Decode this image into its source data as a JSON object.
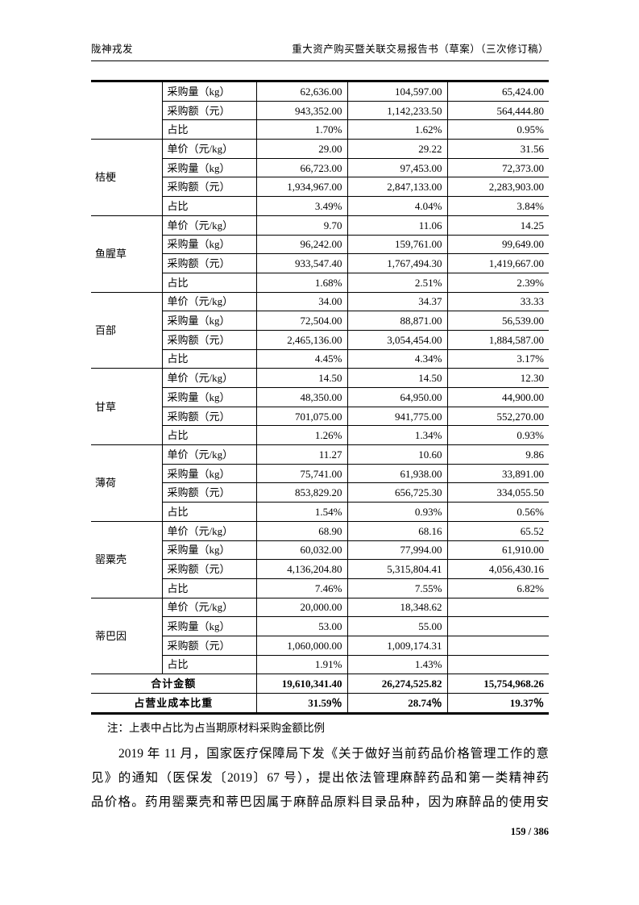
{
  "page": {
    "header_left": "陇神戎发",
    "header_right": "重大资产购买暨关联交易报告书（草案）（三次修订稿）",
    "footer_page": "159 / 386"
  },
  "table": {
    "groups": [
      {
        "name": "",
        "rows": [
          [
            "采购量（kg）",
            "62,636.00",
            "104,597.00",
            "65,424.00"
          ],
          [
            "采购额（元）",
            "943,352.00",
            "1,142,233.50",
            "564,444.80"
          ],
          [
            "占比",
            "1.70%",
            "1.62%",
            "0.95%"
          ]
        ]
      },
      {
        "name": "桔梗",
        "rows": [
          [
            "单价（元/kg）",
            "29.00",
            "29.22",
            "31.56"
          ],
          [
            "采购量（kg）",
            "66,723.00",
            "97,453.00",
            "72,373.00"
          ],
          [
            "采购额（元）",
            "1,934,967.00",
            "2,847,133.00",
            "2,283,903.00"
          ],
          [
            "占比",
            "3.49%",
            "4.04%",
            "3.84%"
          ]
        ]
      },
      {
        "name": "鱼腥草",
        "rows": [
          [
            "单价（元/kg）",
            "9.70",
            "11.06",
            "14.25"
          ],
          [
            "采购量（kg）",
            "96,242.00",
            "159,761.00",
            "99,649.00"
          ],
          [
            "采购额（元）",
            "933,547.40",
            "1,767,494.30",
            "1,419,667.00"
          ],
          [
            "占比",
            "1.68%",
            "2.51%",
            "2.39%"
          ]
        ]
      },
      {
        "name": "百部",
        "rows": [
          [
            "单价（元/kg）",
            "34.00",
            "34.37",
            "33.33"
          ],
          [
            "采购量（kg）",
            "72,504.00",
            "88,871.00",
            "56,539.00"
          ],
          [
            "采购额（元）",
            "2,465,136.00",
            "3,054,454.00",
            "1,884,587.00"
          ],
          [
            "占比",
            "4.45%",
            "4.34%",
            "3.17%"
          ]
        ]
      },
      {
        "name": "甘草",
        "rows": [
          [
            "单价（元/kg）",
            "14.50",
            "14.50",
            "12.30"
          ],
          [
            "采购量（kg）",
            "48,350.00",
            "64,950.00",
            "44,900.00"
          ],
          [
            "采购额（元）",
            "701,075.00",
            "941,775.00",
            "552,270.00"
          ],
          [
            "占比",
            "1.26%",
            "1.34%",
            "0.93%"
          ]
        ]
      },
      {
        "name": "薄荷",
        "rows": [
          [
            "单价（元/kg）",
            "11.27",
            "10.60",
            "9.86"
          ],
          [
            "采购量（kg）",
            "75,741.00",
            "61,938.00",
            "33,891.00"
          ],
          [
            "采购额（元）",
            "853,829.20",
            "656,725.30",
            "334,055.50"
          ],
          [
            "占比",
            "1.54%",
            "0.93%",
            "0.56%"
          ]
        ]
      },
      {
        "name": "罂粟壳",
        "rows": [
          [
            "单价（元/kg）",
            "68.90",
            "68.16",
            "65.52"
          ],
          [
            "采购量（kg）",
            "60,032.00",
            "77,994.00",
            "61,910.00"
          ],
          [
            "采购额（元）",
            "4,136,204.80",
            "5,315,804.41",
            "4,056,430.16"
          ],
          [
            "占比",
            "7.46%",
            "7.55%",
            "6.82%"
          ]
        ]
      },
      {
        "name": "蒂巴因",
        "rows": [
          [
            "单价（元/kg）",
            "20,000.00",
            "18,348.62",
            ""
          ],
          [
            "采购量（kg）",
            "53.00",
            "55.00",
            ""
          ],
          [
            "采购额（元）",
            "1,060,000.00",
            "1,009,174.31",
            ""
          ],
          [
            "占比",
            "1.91%",
            "1.43%",
            ""
          ]
        ]
      }
    ],
    "summary": [
      {
        "label": "合计金额",
        "values": [
          "19,610,341.40",
          "26,274,525.82",
          "15,754,968.26"
        ]
      },
      {
        "label": "占营业成本比重",
        "values": [
          "31.59％",
          "28.74％",
          "19.37％"
        ]
      }
    ]
  },
  "note": "注：上表中占比为占当期原材料采购金额比例",
  "paragraph": {
    "lines": [
      "2019 年 11 月，国家医疗保障局下发《关于做好当前药品价格管理工作的意",
      "见》的通知（医保发〔2019〕67 号），提出依法管理麻醉药品和第一类精神药",
      "品价格。药用罂粟壳和蒂巴因属于麻醉品原料目录品种，因为麻醉品的使用安"
    ]
  }
}
